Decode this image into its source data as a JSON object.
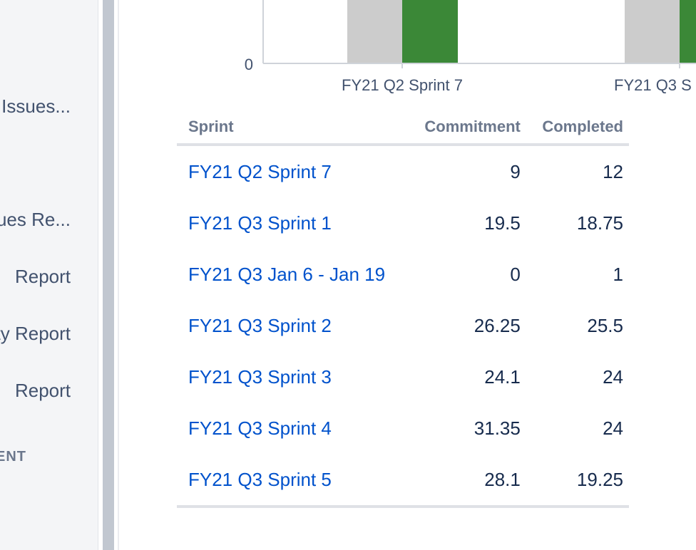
{
  "sidebar": {
    "items": [
      {
        "label": "Issues..."
      },
      {
        "label": "Issues Re..."
      },
      {
        "label": "Report"
      },
      {
        "label": "Velocity Report"
      },
      {
        "label": "Report"
      }
    ],
    "section_label": "DEVELOPMENT"
  },
  "chart_data": {
    "type": "bar",
    "categories": [
      "FY21 Q2 Sprint 7",
      "FY21 Q3 S"
    ],
    "y_axis_visible_ticks": [
      "0"
    ],
    "series": [
      {
        "color": "#cccccc"
      },
      {
        "color": "#3b8837"
      }
    ]
  },
  "table": {
    "headers": {
      "sprint": "Sprint",
      "commitment": "Commitment",
      "completed": "Completed"
    },
    "rows": [
      {
        "sprint": "FY21 Q2 Sprint 7",
        "commitment": "9",
        "completed": "12"
      },
      {
        "sprint": "FY21 Q3 Sprint 1",
        "commitment": "19.5",
        "completed": "18.75"
      },
      {
        "sprint": "FY21 Q3 Jan 6 - Jan 19",
        "commitment": "0",
        "completed": "1"
      },
      {
        "sprint": "FY21 Q3 Sprint 2",
        "commitment": "26.25",
        "completed": "25.5"
      },
      {
        "sprint": "FY21 Q3 Sprint 3",
        "commitment": "24.1",
        "completed": "24"
      },
      {
        "sprint": "FY21 Q3 Sprint 4",
        "commitment": "31.35",
        "completed": "24"
      },
      {
        "sprint": "FY21 Q3 Sprint 5",
        "commitment": "28.1",
        "completed": "19.25"
      }
    ]
  },
  "colors": {
    "link": "#0052cc",
    "commitment_bar": "#cccccc",
    "completed_bar": "#3b8837"
  }
}
